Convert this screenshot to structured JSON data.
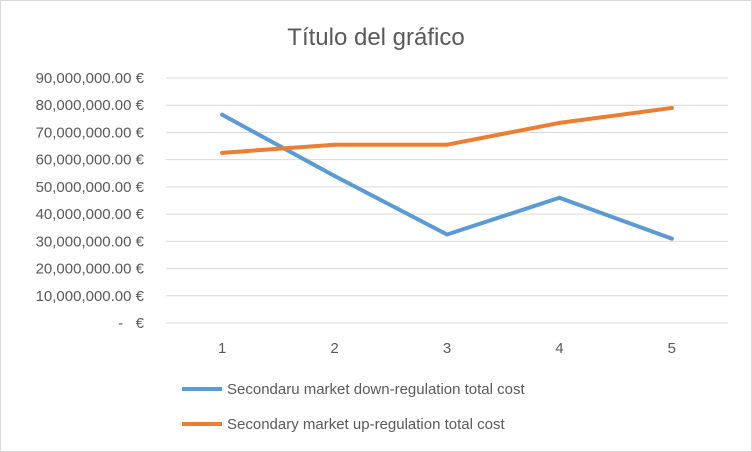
{
  "chart_data": {
    "type": "line",
    "title": "Título del gráfico",
    "xlabel": "",
    "ylabel": "",
    "categories": [
      "1",
      "2",
      "3",
      "4",
      "5"
    ],
    "ylim": [
      0,
      90000000
    ],
    "y_ticks": [
      0,
      10000000,
      20000000,
      30000000,
      40000000,
      50000000,
      60000000,
      70000000,
      80000000,
      90000000
    ],
    "y_tick_labels": [
      "-   €",
      "10,000,000.00 €",
      "20,000,000.00 €",
      "30,000,000.00 €",
      "40,000,000.00 €",
      "50,000,000.00 €",
      "60,000,000.00 €",
      "70,000,000.00 €",
      "80,000,000.00 €",
      "90,000,000.00 €"
    ],
    "grid": true,
    "legend_position": "bottom",
    "series": [
      {
        "name": "Secondaru market down-regulation total cost",
        "color": "#5b9bd5",
        "values": [
          76500000,
          54000000,
          32500000,
          46000000,
          31000000
        ]
      },
      {
        "name": "Secondary market up-regulation total cost",
        "color": "#ed7d31",
        "values": [
          62500000,
          65500000,
          65500000,
          73500000,
          79000000
        ]
      }
    ]
  }
}
